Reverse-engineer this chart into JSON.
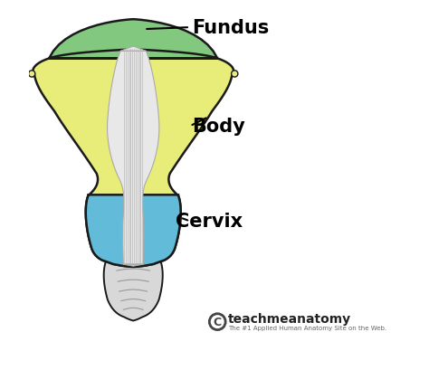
{
  "bg_color": "#ffffff",
  "fundus_color": "#82c87e",
  "body_color": "#e8ec78",
  "cervix_color": "#62bbd8",
  "outline_color": "#1a1a1a",
  "cavity_color": "#e8e8e8",
  "vagina_color": "#d8d8d8",
  "label_fundus": "Fundus",
  "label_body": "Body",
  "label_cervix": "Cervix",
  "watermark_main": "teachmeanatomy",
  "watermark_sub": "The #1 Applied Human Anatomy Site on the Web.",
  "label_fontsize": 15,
  "watermark_fontsize": 10,
  "figsize": [
    4.74,
    4.1
  ],
  "dpi": 100
}
